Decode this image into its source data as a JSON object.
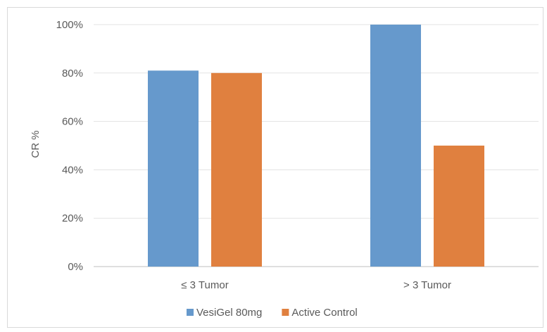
{
  "chart_data": {
    "type": "bar",
    "title": "",
    "xlabel": "",
    "ylabel": "CR %",
    "categories": [
      "≤ 3 Tumor",
      "> 3 Tumor"
    ],
    "series": [
      {
        "name": "VesiGel 80mg",
        "values": [
          81,
          100
        ],
        "color": "#6699cc"
      },
      {
        "name": "Active Control",
        "values": [
          80,
          50
        ],
        "color": "#e0803f"
      }
    ],
    "ylim": [
      0,
      100
    ],
    "yticks": [
      0,
      20,
      40,
      60,
      80,
      100
    ],
    "ytick_labels": [
      "0%",
      "20%",
      "40%",
      "60%",
      "80%",
      "100%"
    ],
    "grid": true,
    "legend": "bottom"
  }
}
